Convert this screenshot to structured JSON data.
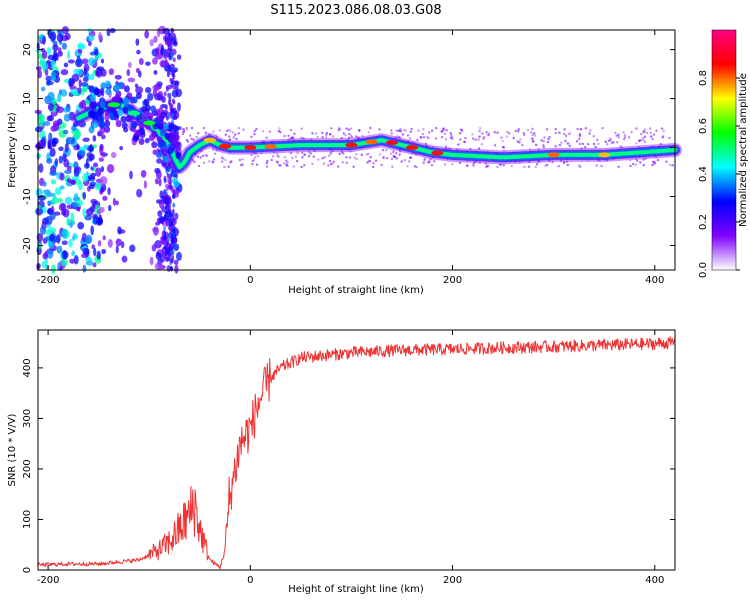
{
  "figure": {
    "title": "S115.2023.086.08.03.G08"
  },
  "chart_data": [
    {
      "type": "heatmap",
      "xlabel": "Height of straight line (km)",
      "ylabel": "Frequency (Hz)",
      "xlim": [
        -210,
        420
      ],
      "ylim": [
        -25,
        24
      ],
      "xticks": [
        -200,
        0,
        200,
        400
      ],
      "yticks": [
        -20,
        -10,
        0,
        10,
        20
      ],
      "grid": false,
      "colorbar": {
        "label": "Normalized spectral amplitude",
        "range": [
          0,
          1
        ],
        "ticks": [
          0.0,
          0.2,
          0.4,
          0.6,
          0.8
        ],
        "colormap": [
          "#ffffff",
          "#7f00ff",
          "#0000ff",
          "#00ffff",
          "#00ff00",
          "#ffff00",
          "#ff0000",
          "#ff0080"
        ]
      },
      "ridge": {
        "x": [
          -170,
          -150,
          -130,
          -115,
          -100,
          -90,
          -80,
          -75,
          -70,
          -65,
          -60,
          -50,
          -40,
          -30,
          -20,
          0,
          50,
          100,
          130,
          150,
          170,
          180,
          200,
          250,
          300,
          350,
          420
        ],
        "y": [
          6,
          8,
          9,
          7,
          5,
          3,
          0.5,
          -2,
          -4,
          -3,
          -1,
          0.5,
          1.5,
          0.5,
          0,
          0,
          0.5,
          0.5,
          1.5,
          0.5,
          -0.5,
          -1,
          -1.5,
          -2,
          -1.5,
          -1.5,
          -0.5
        ]
      }
    },
    {
      "type": "line",
      "xlabel": "Height of straight line (km)",
      "ylabel": "SNR (10 * V/V)",
      "xlim": [
        -210,
        420
      ],
      "ylim": [
        0,
        475
      ],
      "xticks": [
        -200,
        0,
        200,
        400
      ],
      "yticks": [
        0,
        100,
        200,
        300,
        400
      ],
      "grid": false,
      "series": [
        {
          "color": "#ee3333",
          "x": [
            -210,
            -180,
            -150,
            -130,
            -110,
            -100,
            -90,
            -80,
            -70,
            -60,
            -55,
            -50,
            -40,
            -30,
            -25,
            -20,
            -15,
            -10,
            0,
            10,
            20,
            30,
            40,
            50,
            75,
            100,
            150,
            200,
            250,
            300,
            350,
            400,
            420
          ],
          "y": [
            10,
            12,
            12,
            16,
            20,
            30,
            40,
            55,
            80,
            110,
            130,
            80,
            20,
            5,
            40,
            150,
            200,
            250,
            280,
            340,
            380,
            400,
            410,
            420,
            425,
            430,
            435,
            437,
            440,
            442,
            445,
            448,
            450
          ]
        }
      ]
    }
  ]
}
